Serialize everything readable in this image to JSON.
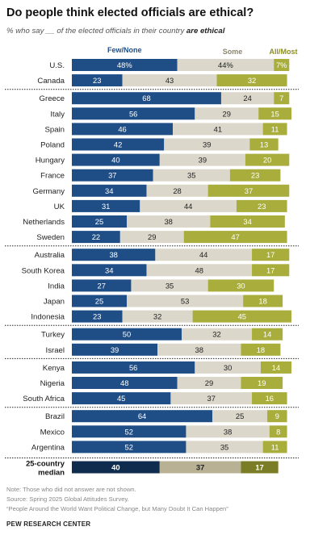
{
  "title": "Do people think elected officials are ethical?",
  "subtitle": {
    "prefix": "% who say __ of the elected officials in their country ",
    "emphasis": "are ethical"
  },
  "chart_data": {
    "type": "bar",
    "stacked": true,
    "orientation": "horizontal",
    "series_labels": [
      "Few/None",
      "Some",
      "All/Most"
    ],
    "colors": {
      "few_none": "#1f4e86",
      "some": "#dcd7cb",
      "all_most": "#a8ad3c",
      "median_few": "#0f2b4d",
      "median_some": "#b9b194",
      "median_all": "#7a7d26",
      "label_all": "#8a8f20"
    },
    "groups": [
      [
        {
          "country": "U.S.",
          "few_none": 48,
          "some": 44,
          "all_most": 7,
          "few_none_label": "48%",
          "some_label": "44%",
          "all_most_label": "7%"
        },
        {
          "country": "Canada",
          "few_none": 23,
          "some": 43,
          "all_most": 32
        }
      ],
      [
        {
          "country": "Greece",
          "few_none": 68,
          "some": 24,
          "all_most": 7
        },
        {
          "country": "Italy",
          "few_none": 56,
          "some": 29,
          "all_most": 15
        },
        {
          "country": "Spain",
          "few_none": 46,
          "some": 41,
          "all_most": 11
        },
        {
          "country": "Poland",
          "few_none": 42,
          "some": 39,
          "all_most": 13
        },
        {
          "country": "Hungary",
          "few_none": 40,
          "some": 39,
          "all_most": 20
        },
        {
          "country": "France",
          "few_none": 37,
          "some": 35,
          "all_most": 23
        },
        {
          "country": "Germany",
          "few_none": 34,
          "some": 28,
          "all_most": 37
        },
        {
          "country": "UK",
          "few_none": 31,
          "some": 44,
          "all_most": 23
        },
        {
          "country": "Netherlands",
          "few_none": 25,
          "some": 38,
          "all_most": 34
        },
        {
          "country": "Sweden",
          "few_none": 22,
          "some": 29,
          "all_most": 47
        }
      ],
      [
        {
          "country": "Australia",
          "few_none": 38,
          "some": 44,
          "all_most": 17
        },
        {
          "country": "South Korea",
          "few_none": 34,
          "some": 48,
          "all_most": 17
        },
        {
          "country": "India",
          "few_none": 27,
          "some": 35,
          "all_most": 30
        },
        {
          "country": "Japan",
          "few_none": 25,
          "some": 53,
          "all_most": 18
        },
        {
          "country": "Indonesia",
          "few_none": 23,
          "some": 32,
          "all_most": 45
        }
      ],
      [
        {
          "country": "Turkey",
          "few_none": 50,
          "some": 32,
          "all_most": 14
        },
        {
          "country": "Israel",
          "few_none": 39,
          "some": 38,
          "all_most": 18
        }
      ],
      [
        {
          "country": "Kenya",
          "few_none": 56,
          "some": 30,
          "all_most": 14
        },
        {
          "country": "Nigeria",
          "few_none": 48,
          "some": 29,
          "all_most": 19
        },
        {
          "country": "South Africa",
          "few_none": 45,
          "some": 37,
          "all_most": 16
        }
      ],
      [
        {
          "country": "Brazil",
          "few_none": 64,
          "some": 25,
          "all_most": 9
        },
        {
          "country": "Mexico",
          "few_none": 52,
          "some": 38,
          "all_most": 8
        },
        {
          "country": "Argentina",
          "few_none": 52,
          "some": 35,
          "all_most": 11
        }
      ]
    ],
    "median": {
      "label_line1": "25-country",
      "label_line2": "median",
      "few_none": 40,
      "some": 37,
      "all_most": 17
    }
  },
  "notes": [
    "Note: Those who did not answer are not shown.",
    "Source: Spring 2025 Global Attitudes Survey.",
    "“People Around the World Want Political Change, but Many Doubt It Can Happen”"
  ],
  "brand": "PEW RESEARCH CENTER"
}
